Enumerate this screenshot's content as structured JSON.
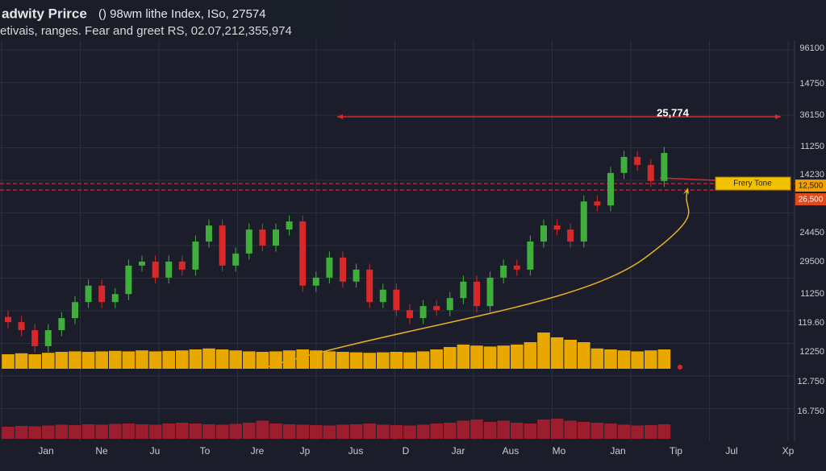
{
  "chart_data": {
    "type": "candlestick",
    "title": "adwity Prirce",
    "title_rest": "() 98wm lithe Index, ISo, 27574",
    "subtitle": "etivais, ranges. Fear and greet RS, 02.07,212,355,974",
    "x_labels": [
      "Jan",
      "Ne",
      "Ju",
      "To",
      "Jre",
      "Jp",
      "Jus",
      "D",
      "Jar",
      "Aus",
      "Mo",
      "Jan",
      "Tip",
      "Jul",
      "Xp"
    ],
    "price_labels": [
      "96100",
      "14750",
      "36150",
      "11250",
      "14230",
      "24450",
      "29500",
      "11250",
      "119.60",
      "12250",
      "12.750",
      "16.750"
    ],
    "annotations": {
      "level": "25,774",
      "zone": "Frery Tone",
      "tag_upper": "12,500",
      "tag_lower": "26,500"
    },
    "ylim": [
      0,
      100
    ],
    "up_color": "#3fae3a",
    "down_color": "#d8282a",
    "volume_color": "#e8a800",
    "volume2_color": "#9b1d2e",
    "open": [
      31.0,
      29.7,
      27.7,
      23.7,
      27.7,
      30.7,
      34.7,
      38.8,
      34.7,
      36.7,
      43.8,
      44.8,
      40.8,
      44.8,
      42.8,
      49.8,
      53.8,
      43.8,
      46.8,
      52.8,
      48.8,
      52.8,
      54.8,
      38.8,
      40.8,
      45.8,
      39.8,
      42.8,
      34.7,
      37.8,
      32.7,
      30.7,
      33.7,
      32.7,
      35.7,
      39.8,
      33.7,
      40.8,
      43.8,
      42.8,
      49.8,
      53.8,
      52.8,
      49.8,
      59.8,
      58.8,
      66.9,
      70.9,
      68.9,
      64.9
    ],
    "high": [
      32.5,
      31.2,
      29.2,
      29.2,
      32.2,
      36.2,
      40.3,
      40.3,
      38.2,
      45.3,
      46.3,
      46.3,
      46.3,
      46.3,
      51.3,
      55.3,
      55.3,
      48.3,
      54.3,
      54.3,
      54.3,
      56.3,
      56.3,
      42.3,
      47.3,
      47.3,
      44.3,
      44.3,
      39.3,
      39.3,
      34.2,
      35.2,
      35.2,
      37.2,
      41.3,
      41.3,
      42.3,
      45.3,
      45.3,
      51.3,
      55.3,
      55.3,
      54.3,
      61.3,
      61.3,
      68.4,
      72.4,
      72.4,
      70.4,
      73.4
    ],
    "low": [
      28.2,
      26.2,
      22.2,
      22.2,
      26.2,
      29.2,
      33.2,
      33.2,
      33.2,
      35.2,
      42.3,
      39.3,
      39.3,
      41.3,
      41.3,
      48.3,
      42.3,
      42.3,
      45.3,
      47.3,
      47.3,
      51.3,
      37.3,
      37.3,
      39.3,
      38.3,
      38.3,
      33.2,
      33.2,
      31.2,
      29.2,
      29.2,
      31.2,
      31.2,
      34.2,
      32.2,
      32.2,
      39.3,
      41.3,
      41.3,
      48.3,
      51.3,
      48.3,
      48.3,
      57.3,
      57.3,
      65.4,
      67.4,
      63.4,
      63.4
    ],
    "close": [
      29.7,
      27.7,
      23.7,
      27.7,
      30.7,
      34.7,
      38.8,
      34.7,
      36.7,
      43.8,
      44.8,
      40.8,
      44.8,
      42.8,
      49.8,
      53.8,
      43.8,
      46.8,
      52.8,
      48.8,
      52.8,
      54.8,
      38.8,
      40.8,
      45.8,
      39.8,
      42.8,
      34.7,
      37.8,
      32.7,
      30.7,
      33.7,
      32.7,
      35.7,
      39.8,
      33.7,
      40.8,
      43.8,
      42.8,
      49.8,
      53.8,
      52.8,
      49.8,
      59.8,
      58.8,
      66.9,
      70.9,
      68.9,
      64.9,
      71.9
    ],
    "volume": [
      30,
      32,
      30,
      33,
      35,
      36,
      35,
      36,
      37,
      36,
      38,
      36,
      37,
      38,
      40,
      42,
      40,
      38,
      36,
      35,
      36,
      38,
      40,
      38,
      36,
      35,
      34,
      33,
      34,
      35,
      34,
      36,
      40,
      45,
      50,
      48,
      46,
      48,
      50,
      55,
      75,
      65,
      60,
      55,
      42,
      40,
      38,
      36,
      38,
      40
    ],
    "volume2": [
      30,
      32,
      31,
      33,
      35,
      34,
      36,
      35,
      37,
      38,
      36,
      35,
      38,
      40,
      38,
      36,
      35,
      37,
      40,
      45,
      38,
      36,
      35,
      34,
      33,
      35,
      36,
      38,
      35,
      34,
      33,
      35,
      38,
      40,
      45,
      48,
      42,
      45,
      40,
      38,
      48,
      50,
      45,
      42,
      40,
      38,
      35,
      33,
      34,
      36
    ]
  }
}
